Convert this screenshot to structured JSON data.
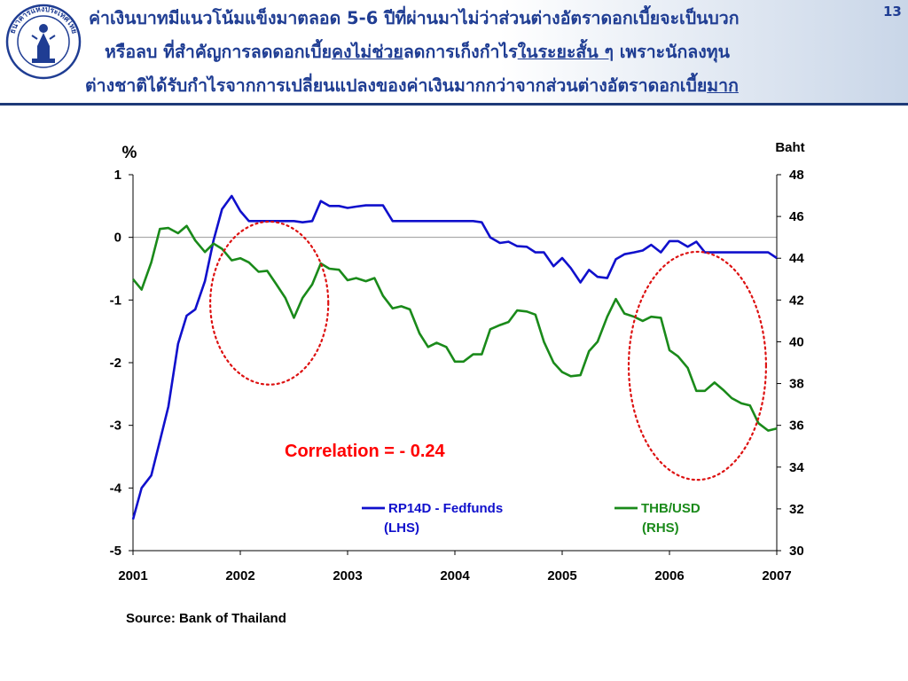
{
  "slide": {
    "number": "13",
    "title_lines": [
      {
        "text": "ค่าเงินบาทมีแนวโน้มแข็งมาตลอด 5-6 ปีที่ผ่านมาไม่ว่าส่วนต่างอัตราดอกเบี้ยจะเป็นบวก"
      },
      {
        "pre": "หรือลบ ที่สำคัญการลดดอกเบี้ย",
        "u1": "คงไม่ช่วย",
        "mid": "ลดการเก็งกำไร",
        "u2": "ในระยะสั้น ๆ",
        "post": " เพราะนักลงทุน"
      },
      {
        "pre": "ต่างชาติได้รับกำไรจากการเปลี่ยนแปลงของค่าเงินมากกว่าจากส่วนต่างอัตราดอกเบี้ย",
        "u1": "มาก"
      }
    ],
    "source": "Source: Bank of Thailand",
    "logo_text": "ธนาคารแห่งประเทศไทย"
  },
  "chart_data": {
    "type": "line",
    "left_axis": {
      "unit_label": "%",
      "range": [
        -5,
        1
      ],
      "ticks": [
        "1",
        "0",
        "-1",
        "-2",
        "-3",
        "-4",
        "-5"
      ]
    },
    "right_axis": {
      "unit_label": "Baht",
      "range": [
        30,
        48
      ],
      "ticks": [
        "48",
        "46",
        "44",
        "42",
        "40",
        "38",
        "36",
        "34",
        "32",
        "30"
      ]
    },
    "x_axis": {
      "range": [
        2001,
        2007
      ],
      "ticks": [
        "2001",
        "2002",
        "2003",
        "2004",
        "2005",
        "2006",
        "2007"
      ]
    },
    "annotation": "Correlation = - 0.24",
    "annotation_color": "#ff0000",
    "highlight_color": "#dd1111",
    "highlights": [
      {
        "x_center": 2002.27,
        "y_center": -1.05,
        "x_radius": 0.55,
        "y_radius": 1.3
      },
      {
        "x_center": 2006.26,
        "y_center": -2.05,
        "x_radius": 0.64,
        "y_radius": 1.82
      }
    ],
    "series": [
      {
        "name": "RP14D - Fedfunds",
        "sub": "(LHS)",
        "axis": "left",
        "color": "#1010cc",
        "x": [
          2001.0,
          2001.08,
          2001.17,
          2001.25,
          2001.33,
          2001.42,
          2001.5,
          2001.58,
          2001.67,
          2001.75,
          2001.83,
          2001.92,
          2002.0,
          2002.08,
          2002.17,
          2002.25,
          2002.33,
          2002.42,
          2002.5,
          2002.58,
          2002.67,
          2002.75,
          2002.83,
          2002.92,
          2003.0,
          2003.08,
          2003.17,
          2003.25,
          2003.33,
          2003.42,
          2003.5,
          2003.58,
          2003.67,
          2003.75,
          2003.83,
          2003.92,
          2004.0,
          2004.08,
          2004.17,
          2004.25,
          2004.33,
          2004.42,
          2004.5,
          2004.58,
          2004.67,
          2004.75,
          2004.83,
          2004.92,
          2005.0,
          2005.08,
          2005.17,
          2005.25,
          2005.33,
          2005.42,
          2005.5,
          2005.58,
          2005.67,
          2005.75,
          2005.83,
          2005.92,
          2006.0,
          2006.08,
          2006.17,
          2006.25,
          2006.33,
          2006.42,
          2006.5,
          2006.58,
          2006.67,
          2006.75,
          2006.83,
          2006.92,
          2007.0
        ],
        "values": [
          -4.5,
          -4.0,
          -3.8,
          -3.25,
          -2.7,
          -1.7,
          -1.25,
          -1.15,
          -0.7,
          -0.05,
          0.45,
          0.66,
          0.42,
          0.26,
          0.26,
          0.26,
          0.26,
          0.26,
          0.26,
          0.24,
          0.26,
          0.58,
          0.5,
          0.5,
          0.47,
          0.49,
          0.51,
          0.51,
          0.51,
          0.26,
          0.26,
          0.26,
          0.26,
          0.26,
          0.26,
          0.26,
          0.26,
          0.26,
          0.26,
          0.24,
          0.0,
          -0.09,
          -0.07,
          -0.14,
          -0.15,
          -0.24,
          -0.24,
          -0.46,
          -0.33,
          -0.49,
          -0.72,
          -0.52,
          -0.63,
          -0.65,
          -0.35,
          -0.27,
          -0.24,
          -0.21,
          -0.12,
          -0.24,
          -0.06,
          -0.06,
          -0.15,
          -0.07,
          -0.24,
          -0.24,
          -0.24,
          -0.24,
          -0.24,
          -0.24,
          -0.24,
          -0.24,
          -0.33
        ]
      },
      {
        "name": "THB/USD",
        "sub": "(RHS)",
        "axis": "right",
        "color": "#1a8a1a",
        "x": [
          2001.0,
          2001.08,
          2001.17,
          2001.25,
          2001.33,
          2001.42,
          2001.5,
          2001.58,
          2001.67,
          2001.75,
          2001.83,
          2001.92,
          2002.0,
          2002.08,
          2002.17,
          2002.25,
          2002.33,
          2002.42,
          2002.5,
          2002.58,
          2002.67,
          2002.75,
          2002.83,
          2002.92,
          2003.0,
          2003.08,
          2003.17,
          2003.25,
          2003.33,
          2003.42,
          2003.5,
          2003.58,
          2003.67,
          2003.75,
          2003.83,
          2003.92,
          2004.0,
          2004.08,
          2004.17,
          2004.25,
          2004.33,
          2004.42,
          2004.5,
          2004.58,
          2004.67,
          2004.75,
          2004.83,
          2004.92,
          2005.0,
          2005.08,
          2005.17,
          2005.25,
          2005.33,
          2005.42,
          2005.5,
          2005.58,
          2005.67,
          2005.75,
          2005.83,
          2005.92,
          2006.0,
          2006.08,
          2006.17,
          2006.25,
          2006.33,
          2006.42,
          2006.5,
          2006.58,
          2006.67,
          2006.75,
          2006.83,
          2006.92,
          2007.0
        ],
        "values": [
          43.0,
          42.5,
          43.8,
          45.4,
          45.45,
          45.2,
          45.55,
          44.85,
          44.3,
          44.7,
          44.45,
          43.9,
          44.0,
          43.8,
          43.35,
          43.4,
          42.8,
          42.1,
          41.15,
          42.1,
          42.75,
          43.75,
          43.5,
          43.45,
          42.95,
          43.05,
          42.9,
          43.05,
          42.2,
          41.6,
          41.7,
          41.55,
          40.4,
          39.75,
          39.95,
          39.75,
          39.05,
          39.05,
          39.4,
          39.4,
          40.6,
          40.8,
          40.95,
          41.5,
          41.45,
          41.3,
          40.0,
          39.0,
          38.55,
          38.35,
          38.4,
          39.55,
          40.0,
          41.2,
          42.05,
          41.35,
          41.2,
          41.0,
          41.2,
          41.15,
          39.6,
          39.3,
          38.75,
          37.65,
          37.65,
          38.05,
          37.7,
          37.3,
          37.05,
          36.95,
          36.1,
          35.75,
          35.85
        ]
      }
    ]
  }
}
